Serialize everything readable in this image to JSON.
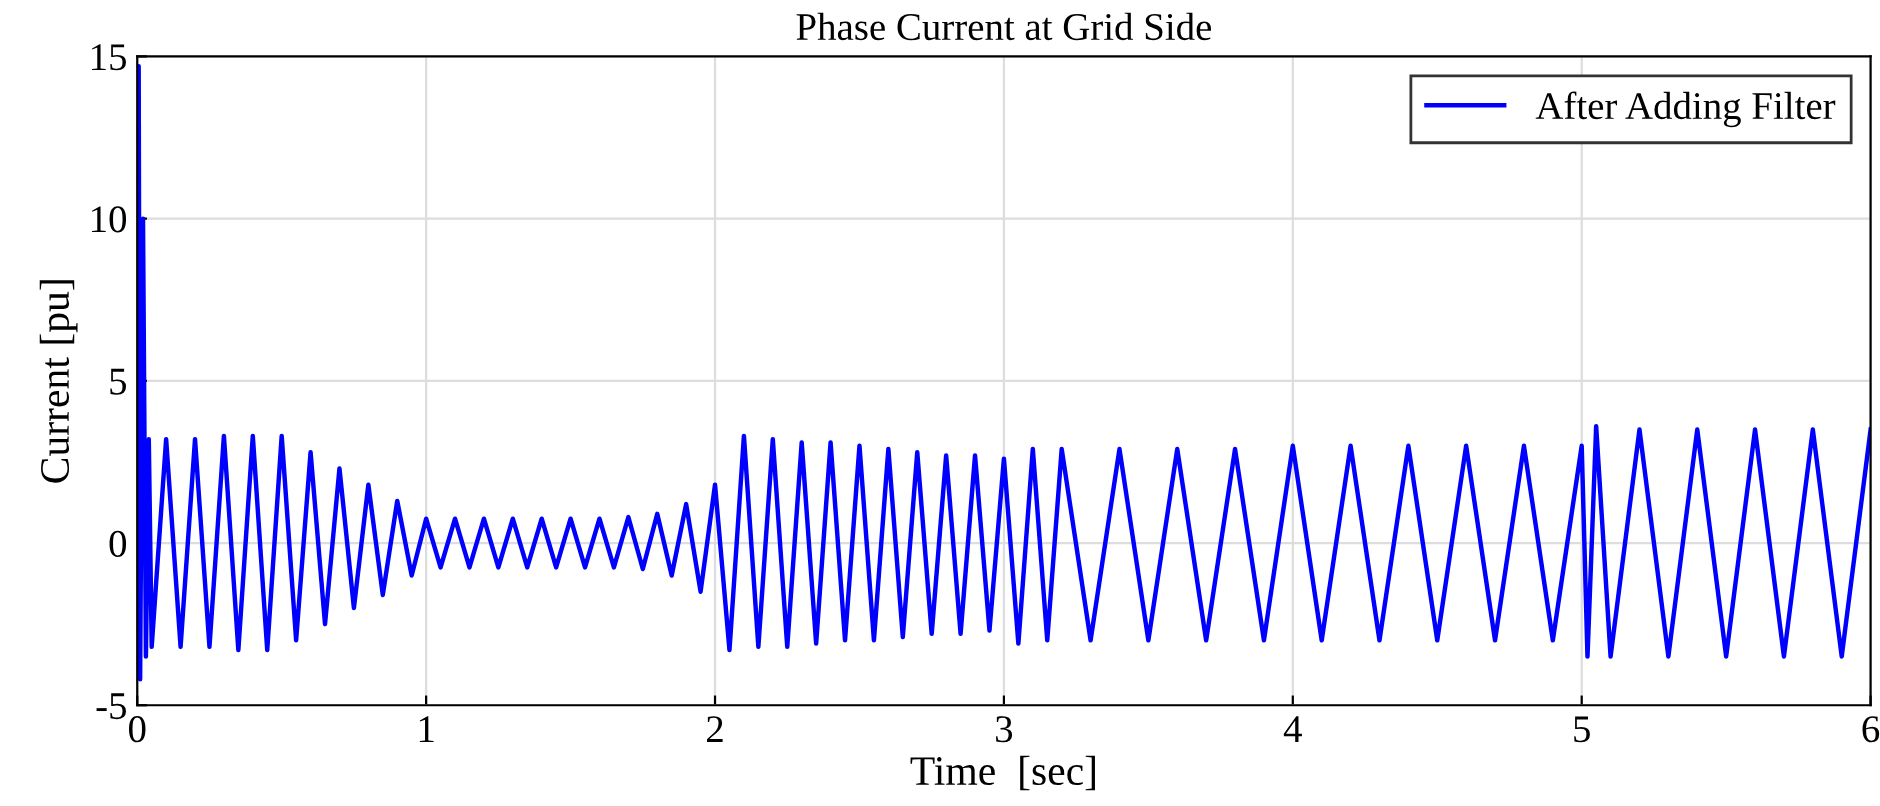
{
  "chart_data": {
    "type": "line",
    "title": "Phase Current at Grid Side",
    "xlabel": "Time  [sec]",
    "ylabel": "Current [pu]",
    "xlim": [
      0,
      6
    ],
    "ylim": [
      -5,
      15
    ],
    "xticks": [
      0,
      1,
      2,
      3,
      4,
      5,
      6
    ],
    "yticks": [
      -5,
      0,
      5,
      10,
      15
    ],
    "grid": true,
    "legend": "top right",
    "marker": "none",
    "line_style": "solid",
    "series": [
      {
        "name": "After Adding Filter",
        "color": "#0000ff",
        "x": [
          0,
          0.005,
          0.01,
          0.02,
          0.03,
          0.04,
          0.05,
          0.1,
          0.15,
          0.2,
          0.25,
          0.3,
          0.35,
          0.4,
          0.45,
          0.5,
          0.55,
          0.6,
          0.65,
          0.7,
          0.75,
          0.8,
          0.85,
          0.9,
          0.95,
          1.0,
          1.05,
          1.1,
          1.15,
          1.2,
          1.25,
          1.3,
          1.35,
          1.4,
          1.45,
          1.5,
          1.55,
          1.6,
          1.65,
          1.7,
          1.75,
          1.8,
          1.85,
          1.9,
          1.95,
          2.0,
          2.05,
          2.1,
          2.15,
          2.2,
          2.25,
          2.3,
          2.35,
          2.4,
          2.45,
          2.5,
          2.55,
          2.6,
          2.65,
          2.7,
          2.75,
          2.8,
          2.85,
          2.9,
          2.95,
          3.0,
          3.05,
          3.1,
          3.15,
          3.2,
          3.3,
          3.4,
          3.5,
          3.6,
          3.7,
          3.8,
          3.9,
          4.0,
          4.1,
          4.2,
          4.3,
          4.4,
          4.5,
          4.6,
          4.7,
          4.8,
          4.9,
          5.0,
          5.02,
          5.05,
          5.1,
          5.2,
          5.3,
          5.4,
          5.5,
          5.6,
          5.7,
          5.8,
          5.9,
          6.0
        ],
        "values": [
          0,
          14.7,
          -4.2,
          10,
          -3.5,
          3.2,
          -3.2,
          3.2,
          -3.2,
          3.2,
          -3.2,
          3.3,
          -3.3,
          3.3,
          -3.3,
          3.3,
          -3.0,
          2.8,
          -2.5,
          2.3,
          -2.0,
          1.8,
          -1.6,
          1.3,
          -1.0,
          0.75,
          -0.75,
          0.75,
          -0.75,
          0.75,
          -0.75,
          0.75,
          -0.75,
          0.75,
          -0.75,
          0.75,
          -0.75,
          0.75,
          -0.75,
          0.8,
          -0.8,
          0.9,
          -1.0,
          1.2,
          -1.5,
          1.8,
          -3.3,
          3.3,
          -3.2,
          3.2,
          -3.2,
          3.1,
          -3.1,
          3.1,
          -3.0,
          3.0,
          -3.0,
          2.9,
          -2.9,
          2.8,
          -2.8,
          2.7,
          -2.8,
          2.7,
          -2.7,
          2.6,
          -3.1,
          2.9,
          -3.0,
          2.9,
          -3.0,
          2.9,
          -3.0,
          2.9,
          -3.0,
          2.9,
          -3.0,
          3.0,
          -3.0,
          3.0,
          -3.0,
          3.0,
          -3.0,
          3.0,
          -3.0,
          3.0,
          -3.0,
          3.0,
          -3.5,
          3.6,
          -3.5,
          3.5,
          -3.5,
          3.5,
          -3.5,
          3.5,
          -3.5,
          3.5,
          -3.5,
          3.5
        ]
      }
    ]
  }
}
